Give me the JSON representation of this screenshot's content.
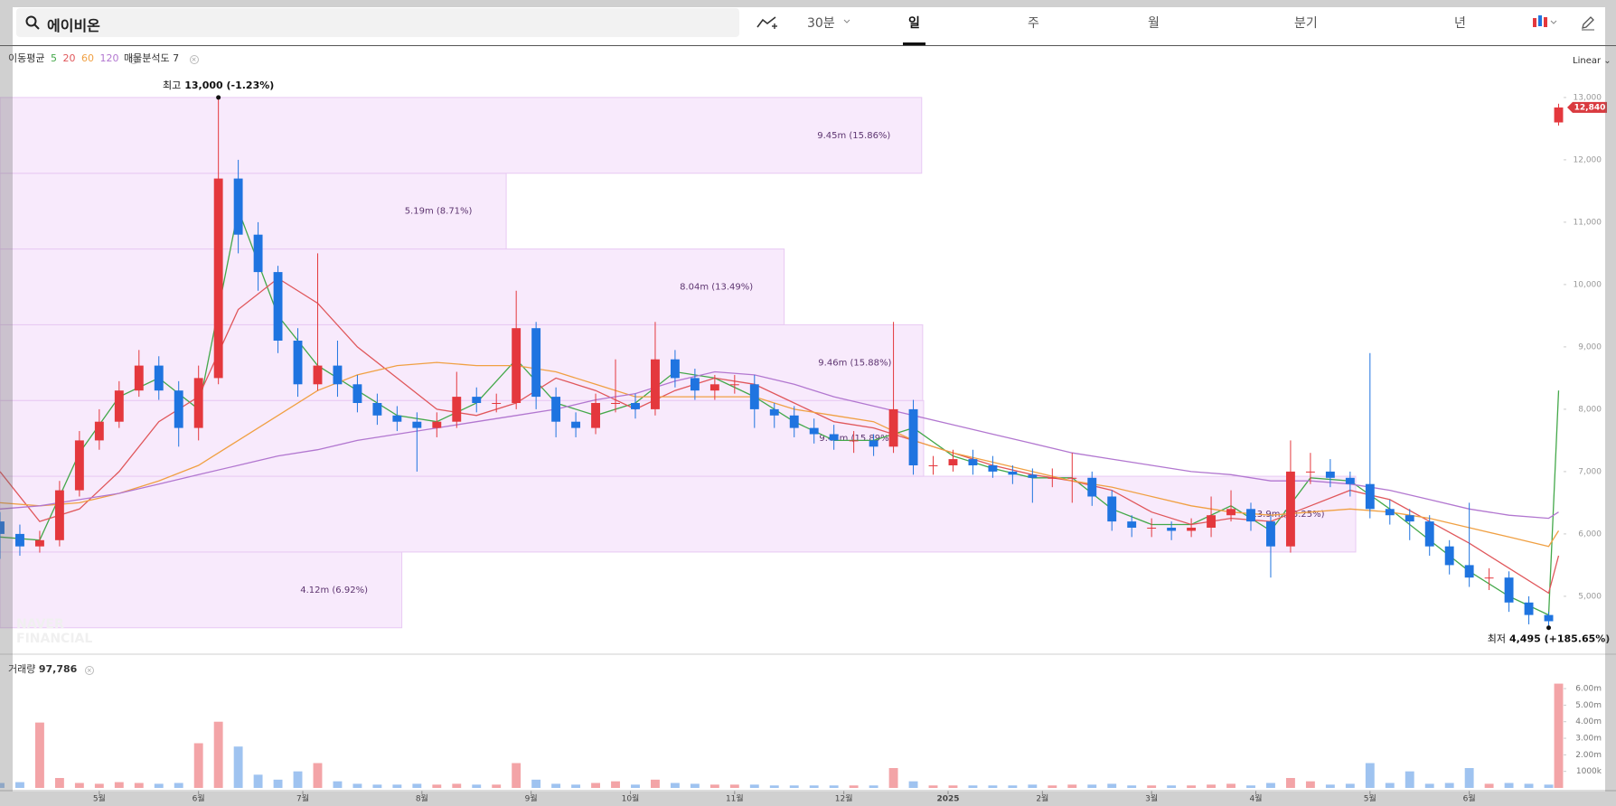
{
  "header": {
    "search": "에이비온",
    "intervals": [
      {
        "label": "30분"
      },
      {
        "label": "일",
        "active": true
      },
      {
        "label": "주"
      },
      {
        "label": "월"
      },
      {
        "label": "분기"
      },
      {
        "label": "년"
      }
    ]
  },
  "chart_data": {
    "type": "candlestick",
    "scale_label": "Linear",
    "watermark": [
      "NAVER",
      "FINANCIAL"
    ],
    "x": [
      0,
      4,
      8,
      12,
      16,
      20,
      24,
      28,
      32,
      36,
      40,
      44,
      48,
      52,
      56,
      60,
      64,
      68,
      72,
      76,
      80,
      84,
      88,
      92,
      96,
      100,
      104,
      108,
      112,
      116,
      120,
      124,
      128,
      132,
      136,
      140,
      144,
      148,
      152,
      156,
      160,
      164,
      168,
      172,
      176,
      180,
      184,
      188,
      192,
      196,
      200,
      204,
      208,
      212,
      216,
      220,
      224,
      228,
      232,
      236,
      240,
      244,
      248,
      252,
      256,
      260,
      264,
      268,
      272,
      276,
      280,
      284,
      288,
      292,
      296,
      300,
      304,
      308,
      312,
      314
    ],
    "open": [
      6200,
      6000,
      5800,
      5900,
      6700,
      7500,
      7800,
      8300,
      8700,
      8300,
      7700,
      8500,
      11700,
      10800,
      10200,
      9100,
      8400,
      8700,
      8400,
      8100,
      7900,
      7800,
      7700,
      7800,
      8200,
      8100,
      8100,
      9300,
      8200,
      7800,
      7700,
      8100,
      8100,
      8000,
      8800,
      8500,
      8300,
      8400,
      8400,
      8000,
      7900,
      7700,
      7600,
      7500,
      7500,
      7400,
      8000,
      7100,
      7100,
      7200,
      7100,
      7000,
      6950,
      6900,
      6900,
      6900,
      6600,
      6200,
      6100,
      6100,
      6050,
      6100,
      6300,
      6400,
      6200,
      5800,
      7000,
      7000,
      6900,
      6800,
      6400,
      6300,
      6200,
      5800,
      5500,
      5300,
      5300,
      4900,
      4700,
      12600
    ],
    "high": [
      6350,
      6150,
      6050,
      6850,
      7650,
      8000,
      8450,
      8950,
      8850,
      8450,
      8700,
      13000,
      12000,
      11000,
      10300,
      9300,
      10500,
      9100,
      8550,
      8250,
      8050,
      7950,
      7950,
      8600,
      8350,
      8250,
      9900,
      9400,
      8350,
      7950,
      8250,
      8800,
      8250,
      9400,
      8950,
      8650,
      8550,
      8550,
      8550,
      8100,
      8050,
      7850,
      7750,
      7650,
      7600,
      9400,
      8150,
      7250,
      7350,
      7350,
      7250,
      7100,
      7050,
      7050,
      7300,
      7000,
      6700,
      6300,
      6250,
      6200,
      6250,
      6600,
      6700,
      6500,
      6300,
      7500,
      7300,
      7200,
      7000,
      8900,
      6550,
      6400,
      6300,
      5900,
      6500,
      5450,
      5400,
      5000,
      4750,
      12900
    ],
    "low": [
      5600,
      5650,
      5700,
      5800,
      6600,
      7350,
      7700,
      8200,
      8150,
      7400,
      7500,
      8400,
      10500,
      9900,
      8900,
      8200,
      8300,
      8200,
      7950,
      7750,
      7650,
      7000,
      7550,
      7700,
      7950,
      7950,
      8000,
      8000,
      7550,
      7550,
      7600,
      7950,
      7850,
      7900,
      8350,
      8150,
      8150,
      8250,
      7700,
      7700,
      7550,
      7450,
      7350,
      7300,
      7250,
      7300,
      6950,
      6950,
      7000,
      6950,
      6900,
      6800,
      6500,
      6750,
      6500,
      6450,
      6050,
      5950,
      5950,
      5900,
      5950,
      5950,
      6200,
      6050,
      5300,
      5700,
      6800,
      6750,
      6600,
      6250,
      6150,
      5900,
      5650,
      5350,
      5150,
      5100,
      4750,
      4550,
      4495,
      12550
    ],
    "close": [
      6000,
      5800,
      5900,
      6700,
      7500,
      7800,
      8300,
      8700,
      8300,
      7700,
      8500,
      11700,
      10800,
      10200,
      9100,
      8400,
      8700,
      8400,
      8100,
      7900,
      7800,
      7700,
      7800,
      8200,
      8100,
      8100,
      9300,
      8200,
      7800,
      7700,
      8100,
      8100,
      8000,
      8800,
      8500,
      8300,
      8400,
      8400,
      8000,
      7900,
      7700,
      7600,
      7500,
      7500,
      7400,
      8000,
      7100,
      7100,
      7200,
      7100,
      7000,
      6950,
      6900,
      6900,
      6900,
      6600,
      6200,
      6100,
      6100,
      6050,
      6100,
      6300,
      6400,
      6200,
      5800,
      7000,
      7000,
      6900,
      6800,
      6400,
      6300,
      6200,
      5800,
      5500,
      5300,
      5300,
      4900,
      4700,
      4600,
      12840
    ],
    "volume": [
      300000,
      350000,
      3950000,
      600000,
      300000,
      250000,
      350000,
      300000,
      250000,
      300000,
      2700000,
      4000000,
      2500000,
      800000,
      500000,
      1000000,
      1500000,
      400000,
      250000,
      200000,
      200000,
      250000,
      200000,
      250000,
      200000,
      200000,
      1500000,
      500000,
      250000,
      200000,
      300000,
      400000,
      200000,
      500000,
      300000,
      250000,
      200000,
      200000,
      200000,
      150000,
      150000,
      150000,
      150000,
      150000,
      150000,
      1200000,
      400000,
      150000,
      150000,
      150000,
      150000,
      150000,
      200000,
      150000,
      200000,
      200000,
      250000,
      150000,
      150000,
      150000,
      150000,
      200000,
      250000,
      150000,
      300000,
      600000,
      400000,
      200000,
      250000,
      1500000,
      300000,
      1000000,
      250000,
      300000,
      1200000,
      250000,
      300000,
      250000,
      200000,
      6300000
    ],
    "up_color": "#e4383d",
    "down_color": "#1f74e0",
    "volume_up_color": "#f3a4a7",
    "volume_down_color": "#9fc3f0",
    "xlim": [
      0,
      315
    ],
    "xticks": [
      {
        "value": 20,
        "label": "5월"
      },
      {
        "value": 40,
        "label": "6월"
      },
      {
        "value": 61,
        "label": "7월"
      },
      {
        "value": 85,
        "label": "8월"
      },
      {
        "value": 107,
        "label": "9월"
      },
      {
        "value": 127,
        "label": "10월"
      },
      {
        "value": 148,
        "label": "11월"
      },
      {
        "value": 170,
        "label": "12월"
      },
      {
        "value": 191,
        "label": "2025"
      },
      {
        "value": 210,
        "label": "2월"
      },
      {
        "value": 232,
        "label": "3월"
      },
      {
        "value": 253,
        "label": "4월"
      },
      {
        "value": 276,
        "label": "5월"
      },
      {
        "value": 296,
        "label": "6월"
      }
    ],
    "ylim": [
      4100,
      13810
    ],
    "yticks": [
      {
        "value": 5000,
        "label": "5,000"
      },
      {
        "value": 6000,
        "label": "6,000"
      },
      {
        "value": 7000,
        "label": "7,000"
      },
      {
        "value": 8000,
        "label": "8,000"
      },
      {
        "value": 9000,
        "label": "9,000"
      },
      {
        "value": 10000,
        "label": "10,000"
      },
      {
        "value": 11000,
        "label": "11,000"
      },
      {
        "value": 12000,
        "label": "12,000"
      },
      {
        "value": 13000,
        "label": "13,000"
      }
    ],
    "volume_ylim": [
      0,
      7860000
    ],
    "volume_yticks": [
      {
        "value": 1000000,
        "label": "1000k"
      },
      {
        "value": 2000000,
        "label": "2.00m"
      },
      {
        "value": 3000000,
        "label": "3.00m"
      },
      {
        "value": 4000000,
        "label": "4.00m"
      },
      {
        "value": 5000000,
        "label": "5.00m"
      },
      {
        "value": 6000000,
        "label": "6.00m"
      }
    ],
    "volume_legend": {
      "label": "거래량",
      "value": "97,786"
    },
    "last_price": 12840,
    "last_price_label": "12,840",
    "last_price_color": "#d93a3f",
    "high_prefix": "최고",
    "high_label": "13,000 (-1.23%)",
    "low_prefix": "최저",
    "low_label": "4,495 (+185.65%)",
    "moving_averages": {
      "label": "이동평균",
      "x": [
        0,
        8,
        16,
        24,
        32,
        40,
        48,
        56,
        64,
        72,
        80,
        88,
        96,
        104,
        112,
        120,
        128,
        136,
        144,
        152,
        160,
        168,
        176,
        184,
        192,
        200,
        208,
        216,
        224,
        232,
        240,
        248,
        256,
        264,
        272,
        280,
        288,
        296,
        304,
        312,
        314
      ],
      "series": [
        {
          "name": "5",
          "color": "#44a84a",
          "values": [
            5950,
            5900,
            7300,
            8200,
            8500,
            8000,
            11200,
            9500,
            8700,
            8300,
            7900,
            7800,
            8100,
            8800,
            8100,
            7900,
            8100,
            8600,
            8500,
            8200,
            7800,
            7500,
            7500,
            7700,
            7250,
            7050,
            6900,
            6900,
            6400,
            6150,
            6150,
            6450,
            6050,
            6900,
            6850,
            6400,
            5900,
            5400,
            5000,
            4700,
            8300
          ]
        },
        {
          "name": "20",
          "color": "#e0575b",
          "values": [
            7000,
            6200,
            6400,
            7000,
            7800,
            8200,
            9600,
            10100,
            9700,
            9000,
            8500,
            8000,
            7900,
            8100,
            8500,
            8300,
            8000,
            8300,
            8500,
            8400,
            8100,
            7800,
            7700,
            7500,
            7300,
            7100,
            6950,
            6850,
            6700,
            6350,
            6150,
            6250,
            6200,
            6450,
            6700,
            6550,
            6200,
            5850,
            5450,
            5050,
            5650
          ]
        },
        {
          "name": "60",
          "color": "#f0a043",
          "values": [
            6500,
            6450,
            6500,
            6650,
            6850,
            7100,
            7500,
            7900,
            8300,
            8550,
            8700,
            8750,
            8700,
            8700,
            8600,
            8400,
            8200,
            8200,
            8200,
            8200,
            8000,
            7900,
            7800,
            7500,
            7300,
            7150,
            7000,
            6850,
            6750,
            6600,
            6450,
            6350,
            6300,
            6350,
            6400,
            6350,
            6250,
            6100,
            5950,
            5800,
            6050
          ]
        },
        {
          "name": "120",
          "color": "#b277d0",
          "values": [
            6400,
            6450,
            6550,
            6650,
            6800,
            6950,
            7100,
            7250,
            7350,
            7500,
            7600,
            7700,
            7800,
            7900,
            8000,
            8150,
            8250,
            8450,
            8600,
            8550,
            8400,
            8200,
            8050,
            7900,
            7750,
            7600,
            7450,
            7300,
            7200,
            7100,
            7000,
            6950,
            6850,
            6850,
            6800,
            6700,
            6550,
            6400,
            6300,
            6250,
            6350
          ]
        }
      ]
    },
    "volume_profile": {
      "label": "매물분석도 7",
      "color": "#f8eafc",
      "border_color": "#e8c9f3",
      "label_color": "#5d3570",
      "bins": [
        4495,
        5710,
        6925,
        8140,
        9355,
        10570,
        11785,
        13000
      ],
      "values": [
        4120000,
        13900000,
        9470000,
        9460000,
        8040000,
        5190000,
        9450000
      ],
      "value_labels": [
        "4.12m (6.92%)",
        "13.9m (23.25%)",
        "9.47m (15.89%)",
        "9.46m (15.88%)",
        "8.04m (13.49%)",
        "5.19m (8.71%)",
        "9.45m (15.86%)"
      ]
    }
  }
}
